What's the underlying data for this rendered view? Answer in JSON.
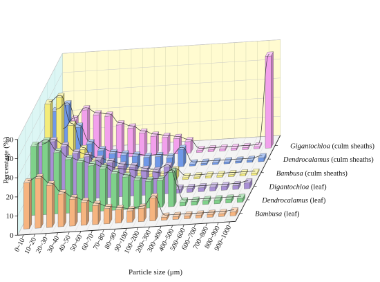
{
  "chart_data": {
    "type": "bar",
    "title": "",
    "xlabel": "Particle size (μm)",
    "ylabel": "Percentage (%)",
    "ylim": [
      0,
      50
    ],
    "yticks": [
      0,
      10,
      20,
      30,
      40,
      50
    ],
    "grid": true,
    "categories": [
      "0~10",
      "10~20",
      "20~30",
      "30~40",
      "40~50",
      "50~60",
      "60~70",
      "70~80",
      "80~90",
      "90~100",
      "100~200",
      "200~300",
      "300~400",
      "400~500",
      "500~600",
      "600~700",
      "700~800",
      "800~900",
      "900~1000"
    ],
    "series": [
      {
        "name_parts": [
          {
            "text": "Bambusa",
            "italic": true
          },
          {
            "text": " (leaf)",
            "italic": false
          }
        ],
        "color": "#f6b47f",
        "values": [
          24,
          26,
          22,
          17,
          14,
          12,
          10,
          8,
          7,
          6,
          7,
          12,
          1.5,
          1.5,
          1.5,
          1.5,
          1.5,
          1.5,
          2
        ]
      },
      {
        "name_parts": [
          {
            "text": "Dendrocalamus",
            "italic": true
          },
          {
            "text": "  (leaf)",
            "italic": false
          }
        ],
        "color": "#7fd18a",
        "values": [
          36,
          38,
          32,
          28,
          26,
          24,
          22,
          19,
          17,
          15,
          14,
          14,
          18,
          2,
          2,
          2,
          2,
          2,
          2
        ]
      },
      {
        "name_parts": [
          {
            "text": "Digantochloa",
            "italic": true
          },
          {
            "text": " (leaf)",
            "italic": false
          }
        ],
        "color": "#a98fd6",
        "values": [
          29,
          31,
          28,
          24,
          22,
          20,
          18,
          16,
          15,
          13,
          12,
          14,
          2,
          2,
          2,
          2,
          2,
          2,
          3
        ]
      },
      {
        "name_parts": [
          {
            "text": "Bambusa",
            "italic": true
          },
          {
            "text": " (culm sheaths)",
            "italic": false
          }
        ],
        "color": "#f4ec7a",
        "values": [
          44,
          47,
          32,
          19,
          12,
          9,
          7,
          6,
          5,
          4,
          3,
          5,
          1,
          1,
          1,
          1,
          1,
          1,
          1
        ]
      },
      {
        "name_parts": [
          {
            "text": "Dendrocalamus",
            "italic": true
          },
          {
            "text": " (culm sheaths)",
            "italic": false
          }
        ],
        "color": "#6f98e8",
        "values": [
          33,
          36,
          24,
          15,
          11,
          9,
          8,
          7,
          6,
          6,
          5,
          9,
          1,
          1,
          1,
          1,
          1,
          1,
          2
        ]
      },
      {
        "name_parts": [
          {
            "text": "Gigantochloa",
            "italic": true
          },
          {
            "text": " (culm sheaths)",
            "italic": false
          }
        ],
        "color": "#f2a0ec",
        "values": [
          16,
          21,
          26,
          23,
          22,
          17,
          15,
          12,
          10,
          9,
          8,
          6,
          1,
          1,
          1,
          1,
          1,
          1,
          48
        ]
      }
    ]
  }
}
